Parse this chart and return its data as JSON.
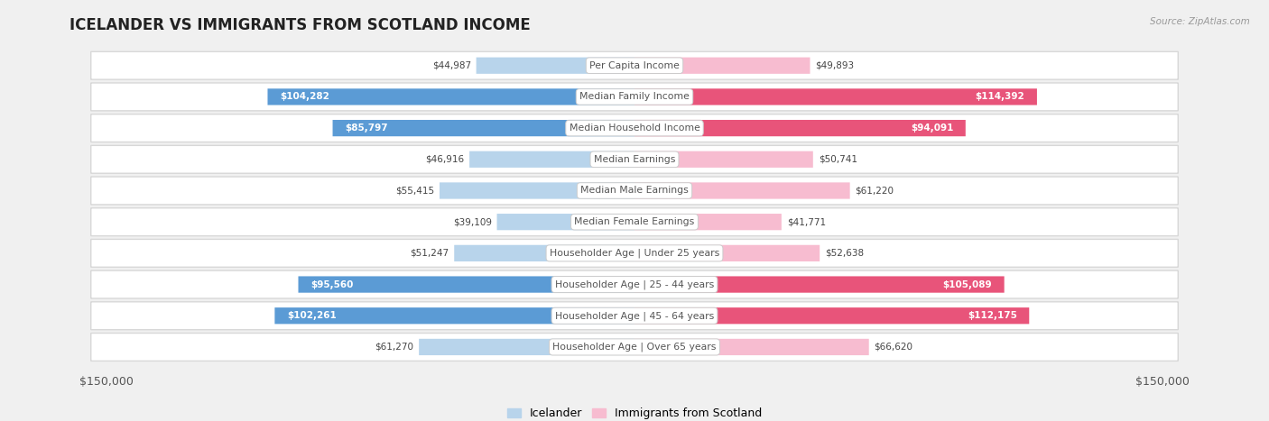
{
  "title": "ICELANDER VS IMMIGRANTS FROM SCOTLAND INCOME",
  "source": "Source: ZipAtlas.com",
  "categories": [
    "Per Capita Income",
    "Median Family Income",
    "Median Household Income",
    "Median Earnings",
    "Median Male Earnings",
    "Median Female Earnings",
    "Householder Age | Under 25 years",
    "Householder Age | 25 - 44 years",
    "Householder Age | 45 - 64 years",
    "Householder Age | Over 65 years"
  ],
  "icelander_values": [
    44987,
    104282,
    85797,
    46916,
    55415,
    39109,
    51247,
    95560,
    102261,
    61270
  ],
  "scotland_values": [
    49893,
    114392,
    94091,
    50741,
    61220,
    41771,
    52638,
    105089,
    112175,
    66620
  ],
  "icelander_color_low": "#b8d4eb",
  "icelander_color_high": "#5b9bd5",
  "scotland_color_low": "#f7bcd0",
  "scotland_color_high": "#e8547a",
  "max_value": 150000,
  "legend_icelander": "Icelander",
  "legend_scotland": "Immigrants from Scotland",
  "bg_color": "#f0f0f0",
  "row_bg_color": "#ffffff",
  "row_border_color": "#d8d8d8",
  "label_outside_color": "#444444",
  "label_inside_color": "#ffffff",
  "category_text_color": "#555555",
  "title_color": "#222222",
  "source_color": "#999999",
  "threshold": 75000,
  "axis_label_color": "#555555"
}
